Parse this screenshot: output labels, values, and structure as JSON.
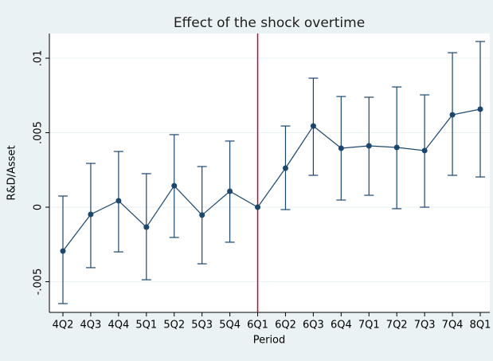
{
  "chart_data": {
    "type": "line",
    "title": "Effect of the shock overtime",
    "x_label": "Period",
    "y_label": "R&D/Asset",
    "categories": [
      "4Q2",
      "4Q3",
      "4Q4",
      "5Q1",
      "5Q2",
      "5Q3",
      "5Q4",
      "6Q1",
      "6Q2",
      "6Q3",
      "6Q4",
      "7Q1",
      "7Q2",
      "7Q3",
      "7Q4",
      "8Q1"
    ],
    "series": [
      {
        "color": "#1a476f",
        "values": [
          -0.00294,
          -0.00048,
          0.00043,
          -0.00134,
          0.00144,
          -0.00053,
          0.00107,
          0,
          0.00262,
          0.00545,
          0.00396,
          0.00412,
          0.00401,
          0.0038,
          0.0062,
          0.00658
        ],
        "ci_upper": [
          0.00075,
          0.00294,
          0.00374,
          0.00225,
          0.00487,
          0.00273,
          0.00444,
          null,
          0.00545,
          0.00866,
          0.00743,
          0.00738,
          0.00807,
          0.00754,
          0.01037,
          0.01112
        ],
        "ci_lower": [
          -0.00647,
          -0.00406,
          -0.003,
          -0.00487,
          -0.00203,
          -0.0038,
          -0.00235,
          null,
          -0.00016,
          0.00214,
          0.00048,
          0.0008,
          -0.0001,
          0,
          0.00214,
          0.00203
        ]
      }
    ],
    "ylim": [
      -0.00706,
      0.01166
    ],
    "yticks": [
      {
        "value": -0.005,
        "label": "-.005"
      },
      0,
      {
        "value": 0.005,
        "label": ".005"
      },
      {
        "value": 0.01,
        "label": ".01"
      }
    ],
    "grid": true,
    "vline": {
      "category": "6Q1",
      "color": "#c10534"
    }
  }
}
